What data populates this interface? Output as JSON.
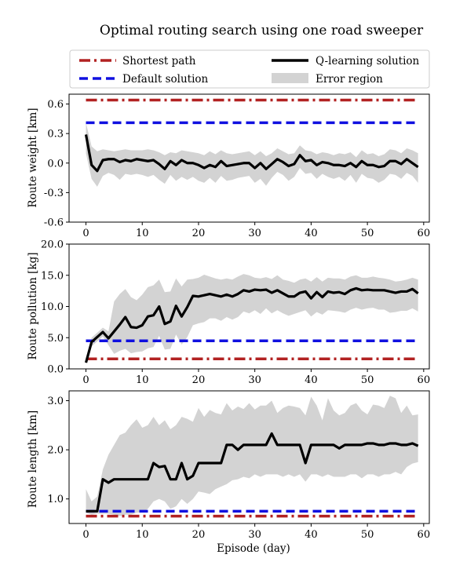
{
  "title": "Optimal routing search using one road sweeper",
  "legend": {
    "placement": "top, above panels, two columns",
    "entries": [
      {
        "key": "shortest",
        "label": "Shortest path",
        "color": "#b22222",
        "style": "dash-dot"
      },
      {
        "key": "default",
        "label": "Default solution",
        "color": "#1010e0",
        "style": "dashed"
      },
      {
        "key": "qlearning",
        "label": "Q-learning solution",
        "color": "#000000",
        "style": "solid"
      },
      {
        "key": "error",
        "label": "Error region",
        "color": "#d3d3d3",
        "style": "fill"
      }
    ]
  },
  "xlabel": "Episode (day)",
  "chart_data": [
    {
      "type": "line",
      "ylabel": "Route weight [km]",
      "xlim": [
        -3,
        61
      ],
      "ylim": [
        -0.6,
        0.7
      ],
      "xticks": [
        0,
        10,
        20,
        30,
        40,
        50,
        60
      ],
      "yticks": [
        -0.6,
        -0.3,
        0.0,
        0.3,
        0.6
      ],
      "ytick_labels": [
        "-0.6",
        "-0.3",
        "0.0",
        "0.3",
        "0.6"
      ],
      "shortest_path": 0.64,
      "default_solution": 0.41,
      "q_learning": [
        0.29,
        -0.02,
        -0.08,
        0.03,
        0.04,
        0.04,
        0.01,
        0.03,
        0.02,
        0.04,
        0.03,
        0.02,
        0.03,
        -0.01,
        -0.06,
        0.02,
        -0.02,
        0.03,
        0.0,
        0.0,
        -0.02,
        -0.05,
        -0.02,
        -0.04,
        0.02,
        -0.03,
        -0.02,
        -0.01,
        0.0,
        0.0,
        -0.05,
        0.0,
        -0.06,
        -0.01,
        0.04,
        0.01,
        -0.03,
        -0.01,
        0.08,
        0.02,
        0.03,
        -0.02,
        0.01,
        0.0,
        -0.02,
        -0.02,
        -0.03,
        0.0,
        -0.04,
        0.02,
        -0.02,
        -0.02,
        -0.04,
        -0.03,
        0.02,
        0.02,
        -0.01,
        0.04,
        0.0,
        -0.04
      ],
      "error_upper": [
        0.41,
        0.17,
        0.12,
        0.14,
        0.13,
        0.12,
        0.13,
        0.14,
        0.13,
        0.13,
        0.13,
        0.14,
        0.13,
        0.11,
        0.08,
        0.11,
        0.1,
        0.13,
        0.12,
        0.11,
        0.1,
        0.08,
        0.12,
        0.09,
        0.13,
        0.1,
        0.09,
        0.1,
        0.11,
        0.12,
        0.08,
        0.12,
        0.07,
        0.1,
        0.15,
        0.12,
        0.09,
        0.1,
        0.18,
        0.13,
        0.12,
        0.09,
        0.11,
        0.1,
        0.08,
        0.1,
        0.09,
        0.11,
        0.06,
        0.13,
        0.09,
        0.1,
        0.07,
        0.09,
        0.14,
        0.13,
        0.1,
        0.15,
        0.13,
        0.1
      ],
      "error_lower": [
        0.1,
        -0.16,
        -0.24,
        -0.13,
        -0.1,
        -0.12,
        -0.17,
        -0.11,
        -0.12,
        -0.11,
        -0.12,
        -0.14,
        -0.12,
        -0.17,
        -0.21,
        -0.12,
        -0.18,
        -0.14,
        -0.17,
        -0.14,
        -0.18,
        -0.2,
        -0.15,
        -0.2,
        -0.13,
        -0.18,
        -0.17,
        -0.15,
        -0.14,
        -0.13,
        -0.2,
        -0.16,
        -0.23,
        -0.15,
        -0.09,
        -0.12,
        -0.18,
        -0.14,
        -0.05,
        -0.11,
        -0.1,
        -0.16,
        -0.11,
        -0.14,
        -0.16,
        -0.14,
        -0.18,
        -0.12,
        -0.2,
        -0.11,
        -0.15,
        -0.16,
        -0.2,
        -0.17,
        -0.11,
        -0.12,
        -0.16,
        -0.1,
        -0.13,
        -0.2
      ]
    },
    {
      "type": "line",
      "ylabel": "Route pollution [kg]",
      "xlim": [
        -3,
        61
      ],
      "ylim": [
        0,
        20
      ],
      "xticks": [
        0,
        10,
        20,
        30,
        40,
        50,
        60
      ],
      "yticks": [
        0,
        5,
        10,
        15,
        20
      ],
      "ytick_labels": [
        "0.0",
        "5.0",
        "10.0",
        "15.0",
        "20.0"
      ],
      "shortest_path": 1.6,
      "default_solution": 4.5,
      "q_learning": [
        1.0,
        4.3,
        5.1,
        5.9,
        4.9,
        6.0,
        7.1,
        8.3,
        6.7,
        6.6,
        7.0,
        8.4,
        8.6,
        10.0,
        7.2,
        7.6,
        10.1,
        8.4,
        9.9,
        11.7,
        11.6,
        11.8,
        12.0,
        11.8,
        11.6,
        11.9,
        11.6,
        12.0,
        12.6,
        12.4,
        12.7,
        12.6,
        12.7,
        12.2,
        12.6,
        12.1,
        11.6,
        11.6,
        12.2,
        12.4,
        11.3,
        12.3,
        11.5,
        12.4,
        12.2,
        12.3,
        12.0,
        12.6,
        12.9,
        12.6,
        12.7,
        12.6,
        12.6,
        12.6,
        12.4,
        12.2,
        12.4,
        12.4,
        12.8,
        12.1
      ],
      "error_upper": [
        1.2,
        5.0,
        5.8,
        6.6,
        6.0,
        10.8,
        12.0,
        12.8,
        11.5,
        11.0,
        11.9,
        13.1,
        13.4,
        14.3,
        12.3,
        12.4,
        14.5,
        13.2,
        14.3,
        14.4,
        14.6,
        15.1,
        14.8,
        14.5,
        14.3,
        14.5,
        14.3,
        14.8,
        15.2,
        15.0,
        14.6,
        14.5,
        14.7,
        14.4,
        15.0,
        14.3,
        14.1,
        13.8,
        14.3,
        14.5,
        14.0,
        14.7,
        14.0,
        14.6,
        14.5,
        14.5,
        14.3,
        14.8,
        15.0,
        14.6,
        14.6,
        14.8,
        14.6,
        14.5,
        14.3,
        14.0,
        14.1,
        14.3,
        14.6,
        14.3
      ],
      "error_lower": [
        0.8,
        3.6,
        4.4,
        5.2,
        3.8,
        2.4,
        2.9,
        3.2,
        2.5,
        2.7,
        2.8,
        3.3,
        3.5,
        5.3,
        3.1,
        3.2,
        5.5,
        3.9,
        5.1,
        7.0,
        7.3,
        7.5,
        8.1,
        8.1,
        7.7,
        8.3,
        7.9,
        8.3,
        9.2,
        8.9,
        9.4,
        8.8,
        9.7,
        8.9,
        9.4,
        8.9,
        8.5,
        8.8,
        9.1,
        9.4,
        8.4,
        9.1,
        8.7,
        9.4,
        9.3,
        9.2,
        9.0,
        9.5,
        9.8,
        9.5,
        9.7,
        9.8,
        9.5,
        9.5,
        9.0,
        9.1,
        9.3,
        9.3,
        9.7,
        9.2
      ]
    },
    {
      "type": "line",
      "ylabel": "Route length [km]",
      "xlim": [
        -3,
        61
      ],
      "ylim": [
        0.5,
        3.2
      ],
      "xticks": [
        0,
        10,
        20,
        30,
        40,
        50,
        60
      ],
      "yticks": [
        1.0,
        2.0,
        3.0
      ],
      "ytick_labels": [
        "1.0",
        "2.0",
        "3.0"
      ],
      "shortest_path": 0.65,
      "default_solution": 0.75,
      "q_learning": [
        0.75,
        0.75,
        0.75,
        1.4,
        1.33,
        1.4,
        1.4,
        1.4,
        1.4,
        1.4,
        1.4,
        1.4,
        1.73,
        1.65,
        1.67,
        1.4,
        1.4,
        1.73,
        1.4,
        1.47,
        1.73,
        1.73,
        1.73,
        1.73,
        1.73,
        2.1,
        2.1,
        2.0,
        2.1,
        2.1,
        2.1,
        2.1,
        2.1,
        2.33,
        2.1,
        2.1,
        2.1,
        2.1,
        2.1,
        1.73,
        2.1,
        2.1,
        2.1,
        2.1,
        2.1,
        2.03,
        2.1,
        2.1,
        2.1,
        2.1,
        2.13,
        2.13,
        2.1,
        2.1,
        2.13,
        2.13,
        2.1,
        2.1,
        2.13,
        2.08
      ],
      "error_upper": [
        1.2,
        0.95,
        1.05,
        1.6,
        1.9,
        2.1,
        2.3,
        2.35,
        2.5,
        2.62,
        2.45,
        2.5,
        2.67,
        2.5,
        2.6,
        2.42,
        2.5,
        2.67,
        2.63,
        2.57,
        2.85,
        2.67,
        2.81,
        2.75,
        2.72,
        2.95,
        2.8,
        2.88,
        2.83,
        2.95,
        2.82,
        2.9,
        2.9,
        3.0,
        2.75,
        2.85,
        2.9,
        2.88,
        2.85,
        2.7,
        3.08,
        2.9,
        2.6,
        3.05,
        2.8,
        2.7,
        2.75,
        2.9,
        2.95,
        2.8,
        2.72,
        2.92,
        2.9,
        2.85,
        3.1,
        3.05,
        2.75,
        2.9,
        2.7,
        2.72
      ],
      "error_lower": [
        0.72,
        0.68,
        0.7,
        0.7,
        0.7,
        0.68,
        0.65,
        0.68,
        0.68,
        0.72,
        0.73,
        0.8,
        0.95,
        1.0,
        0.95,
        0.8,
        0.85,
        1.0,
        0.9,
        1.0,
        1.15,
        1.13,
        1.1,
        1.2,
        1.25,
        1.3,
        1.38,
        1.4,
        1.45,
        1.42,
        1.5,
        1.45,
        1.5,
        1.5,
        1.5,
        1.45,
        1.5,
        1.45,
        1.5,
        1.35,
        1.5,
        1.5,
        1.45,
        1.5,
        1.45,
        1.45,
        1.45,
        1.5,
        1.5,
        1.42,
        1.5,
        1.5,
        1.45,
        1.5,
        1.5,
        1.55,
        1.5,
        1.65,
        1.72,
        1.75
      ]
    }
  ]
}
